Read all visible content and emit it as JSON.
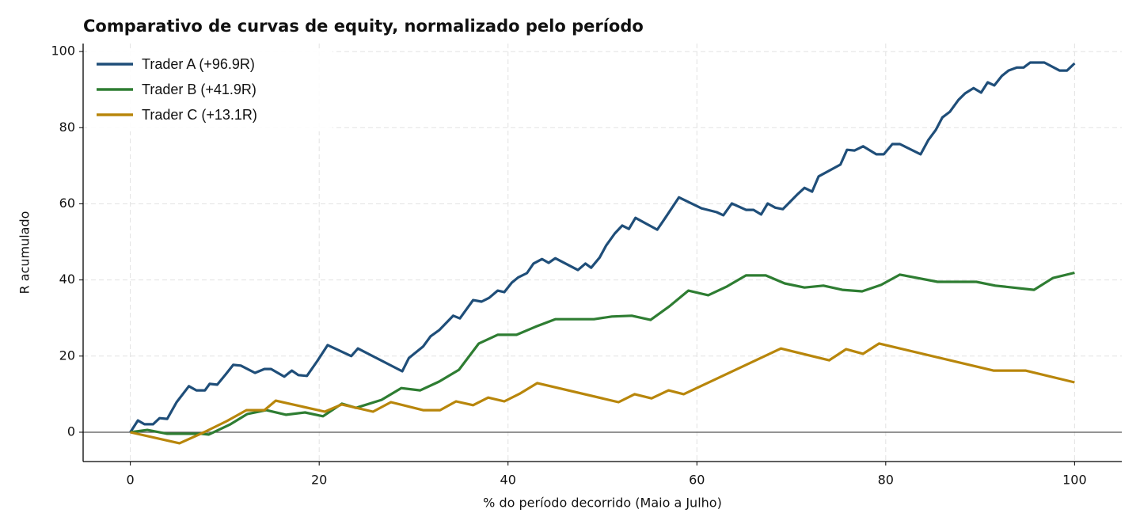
{
  "chart_data": {
    "type": "line",
    "title": "Comparativo de curvas de equity, normalizado pelo período",
    "x_label": "% do período decorrido (Maio a Julho)",
    "y_label": "R acumulado",
    "xlim": [
      -5,
      105
    ],
    "ylim": [
      -7.7,
      102.1
    ],
    "xticks": [
      0,
      20,
      40,
      60,
      80,
      100
    ],
    "yticks": [
      0,
      20,
      40,
      60,
      80,
      100
    ],
    "grid": true,
    "legend": "upper left",
    "series": [
      {
        "name": "Trader A (+96.9R)",
        "color": "#1f4e79",
        "x": [
          0,
          0.8,
          1.5,
          2.4,
          3.1,
          3.9,
          4.9,
          6.2,
          7.0,
          7.9,
          8.4,
          9.2,
          10.1,
          10.9,
          11.7,
          13.2,
          14.2,
          14.9,
          16.3,
          17.1,
          17.8,
          18.7,
          19.8,
          20.9,
          23.4,
          24.1,
          28.8,
          29.5,
          31,
          31.8,
          32.7,
          34.2,
          34.9,
          36.3,
          37.2,
          38,
          38.9,
          39.6,
          40.4,
          41.1,
          42,
          42.7,
          43.6,
          44.3,
          45,
          47.4,
          48.2,
          48.8,
          49.7,
          50.4,
          51.3,
          52.1,
          52.8,
          53.5,
          55.8,
          56.6,
          58.1,
          60.5,
          62.1,
          62.8,
          63.7,
          65.2,
          66,
          66.8,
          67.5,
          68.3,
          69.1,
          70.7,
          71.4,
          72.2,
          72.9,
          75.2,
          75.9,
          76.7,
          77.6,
          79,
          79.8,
          80.7,
          81.5,
          83.7,
          84.5,
          85.3,
          86,
          86.8,
          87.7,
          88.4,
          89.3,
          90.1,
          90.8,
          91.5,
          92.3,
          93,
          93.9,
          94.6,
          95.3,
          96.8,
          98.4,
          99.2,
          100
        ],
        "values": [
          0,
          3.1,
          2.1,
          2.1,
          3.7,
          3.5,
          7.9,
          12.1,
          11,
          11,
          12.7,
          12.5,
          15.2,
          17.7,
          17.5,
          15.6,
          16.6,
          16.6,
          14.6,
          16.2,
          15,
          14.8,
          18.7,
          22.9,
          20,
          22,
          16,
          19.5,
          22.5,
          25.2,
          26.8,
          30.6,
          29.9,
          34.7,
          34.3,
          35.3,
          37.2,
          36.8,
          39.3,
          40.7,
          41.8,
          44.3,
          45.5,
          44.5,
          45.7,
          42.6,
          44.3,
          43.2,
          45.9,
          49.1,
          52.2,
          54.3,
          53.4,
          56.3,
          53.2,
          56.1,
          61.7,
          58.8,
          57.8,
          57,
          60.1,
          58.4,
          58.4,
          57.2,
          60.1,
          59,
          58.6,
          62.6,
          64.2,
          63.2,
          67.2,
          70.3,
          74.2,
          74,
          75.1,
          73,
          73,
          75.7,
          75.7,
          73,
          76.7,
          79.4,
          82.7,
          84.2,
          87.3,
          89,
          90.4,
          89.2,
          91.9,
          91.1,
          93.6,
          95,
          95.8,
          95.8,
          97.1,
          97.1,
          95,
          95,
          96.9
        ]
      },
      {
        "name": "Trader B (+41.9R)",
        "color": "#2e7d32",
        "x": [
          0,
          1.8,
          3.9,
          7.5,
          8.3,
          10.6,
          12.4,
          14.4,
          16.5,
          18.5,
          20.4,
          22.4,
          23.9,
          26.6,
          28.7,
          30.7,
          32.7,
          34.8,
          36.9,
          38.9,
          40.9,
          42.9,
          45,
          49.1,
          51,
          53.1,
          55.1,
          57.1,
          59.1,
          61.2,
          63.2,
          65.2,
          67.3,
          69.3,
          71.4,
          73.4,
          75.4,
          77.5,
          79.5,
          81.5,
          85.5,
          87.6,
          89.6,
          91.6,
          95.7,
          97.7,
          100
        ],
        "values": [
          0,
          0.6,
          -0.4,
          -0.4,
          -0.6,
          2.1,
          4.8,
          5.8,
          4.6,
          5.2,
          4.2,
          7.5,
          6.4,
          8.5,
          11.6,
          11,
          13.3,
          16.4,
          23.3,
          25.6,
          25.6,
          27.7,
          29.7,
          29.7,
          30.4,
          30.6,
          29.5,
          33.1,
          37.2,
          36,
          38.3,
          41.2,
          41.2,
          39.1,
          38,
          38.5,
          37.4,
          37,
          38.7,
          41.4,
          39.5,
          39.5,
          39.5,
          38.5,
          37.4,
          40.5,
          41.9
        ]
      },
      {
        "name": "Trader C (+13.1R)",
        "color": "#b8860b",
        "x": [
          0,
          5.2,
          7.8,
          10.2,
          12.3,
          14.2,
          15.4,
          20.6,
          22.4,
          25.7,
          27.6,
          31,
          32.8,
          34.5,
          36.3,
          37.9,
          39.6,
          41.3,
          43.1,
          51.7,
          53.4,
          55.2,
          57,
          58.6,
          68.9,
          74,
          75.8,
          77.6,
          79.3,
          91.4,
          94.8,
          100
        ],
        "values": [
          0,
          -2.9,
          0,
          2.9,
          5.8,
          5.8,
          8.3,
          5.4,
          7.3,
          5.4,
          7.9,
          5.8,
          5.8,
          8.1,
          7.1,
          9.1,
          8.1,
          10.2,
          12.9,
          7.9,
          10,
          8.9,
          11,
          10,
          22,
          18.9,
          21.8,
          20.6,
          23.3,
          16.2,
          16.2,
          13.1
        ]
      }
    ]
  }
}
